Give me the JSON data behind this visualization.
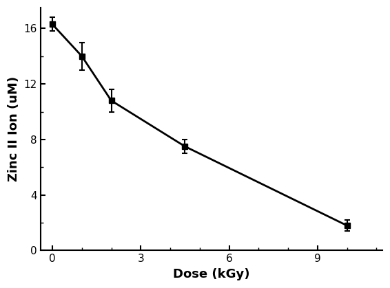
{
  "x": [
    0,
    1.0,
    2.0,
    4.5,
    10.0
  ],
  "y": [
    16.3,
    14.0,
    10.8,
    7.5,
    1.8
  ],
  "yerr": [
    0.5,
    1.0,
    0.8,
    0.5,
    0.4
  ],
  "xlabel": "Dose (kGy)",
  "ylabel": "Zinc II Ion (uM)",
  "xlim": [
    -0.4,
    11.2
  ],
  "ylim": [
    0,
    17.5
  ],
  "xticks": [
    0,
    3,
    6,
    9
  ],
  "yticks": [
    0,
    4,
    8,
    12,
    16
  ],
  "line_color": "#000000",
  "marker": "s-",
  "markersize": 6,
  "linewidth": 2.0,
  "capsize": 3,
  "elinewidth": 1.5,
  "background_color": "#ffffff",
  "xlabel_fontsize": 13,
  "ylabel_fontsize": 13,
  "tick_fontsize": 11
}
